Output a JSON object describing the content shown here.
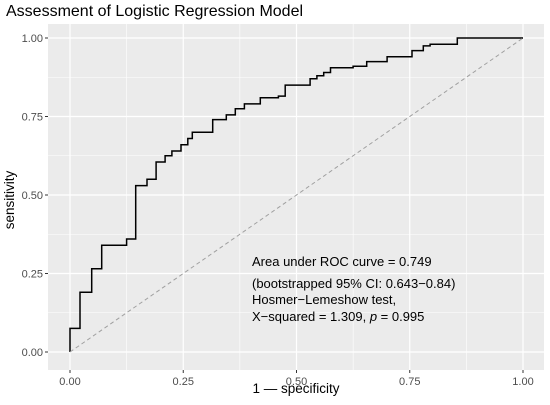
{
  "chart_data": {
    "type": "line",
    "title": "Assessment of Logistic Regression Model",
    "xlabel": "1 — specificity",
    "ylabel": "sensitivity",
    "xlim": [
      0,
      1
    ],
    "ylim": [
      0,
      1
    ],
    "x_ticks": [
      0,
      0.25,
      0.5,
      0.75,
      1
    ],
    "x_tick_labels": [
      "0.00",
      "0.25",
      "0.50",
      "0.75",
      "1.00"
    ],
    "y_ticks": [
      0,
      0.25,
      0.5,
      0.75,
      1
    ],
    "y_tick_labels": [
      "0.00",
      "0.25",
      "0.50",
      "0.75",
      "1.00"
    ],
    "grid": true,
    "background": "#ebebeb",
    "grid_color": "#ffffff",
    "series": [
      {
        "type": "step",
        "color": "#000000",
        "x": [
          0,
          0,
          0.022,
          0.022,
          0.048,
          0.048,
          0.07,
          0.07,
          0.125,
          0.125,
          0.145,
          0.145,
          0.17,
          0.17,
          0.19,
          0.19,
          0.21,
          0.21,
          0.225,
          0.225,
          0.245,
          0.245,
          0.26,
          0.26,
          0.27,
          0.27,
          0.285,
          0.285,
          0.315,
          0.315,
          0.345,
          0.345,
          0.365,
          0.365,
          0.385,
          0.385,
          0.42,
          0.42,
          0.46,
          0.46,
          0.475,
          0.475,
          0.53,
          0.53,
          0.545,
          0.545,
          0.56,
          0.56,
          0.575,
          0.575,
          0.6,
          0.6,
          0.625,
          0.625,
          0.655,
          0.655,
          0.7,
          0.7,
          0.755,
          0.755,
          0.78,
          0.78,
          0.795,
          0.795,
          0.8,
          0.8,
          0.855,
          0.855,
          0.9,
          0.9,
          1.0
        ],
        "y": [
          0,
          0.075,
          0.075,
          0.19,
          0.19,
          0.265,
          0.265,
          0.34,
          0.34,
          0.36,
          0.36,
          0.53,
          0.53,
          0.55,
          0.55,
          0.605,
          0.605,
          0.625,
          0.625,
          0.64,
          0.64,
          0.66,
          0.66,
          0.68,
          0.68,
          0.7,
          0.7,
          0.7,
          0.7,
          0.74,
          0.74,
          0.755,
          0.755,
          0.775,
          0.775,
          0.79,
          0.79,
          0.81,
          0.81,
          0.815,
          0.815,
          0.85,
          0.85,
          0.87,
          0.87,
          0.88,
          0.88,
          0.89,
          0.89,
          0.905,
          0.905,
          0.905,
          0.905,
          0.91,
          0.91,
          0.925,
          0.925,
          0.94,
          0.94,
          0.96,
          0.96,
          0.975,
          0.975,
          0.98,
          0.98,
          0.98,
          0.98,
          1.0,
          1.0,
          1.0,
          1.0
        ]
      },
      {
        "type": "reference-diagonal",
        "color": "#a0a0a0",
        "dashed": true,
        "x": [
          0,
          1
        ],
        "y": [
          0,
          1
        ]
      }
    ],
    "annotations": [
      "Area under ROC curve = 0.749",
      "(bootstrapped 95% CI: 0.643−0.84)",
      "Hosmer−Lemeshow test,"
    ],
    "annotation_hl": {
      "prefix": "X−squared = 1.309, ",
      "p": "p",
      "suffix": " = 0.995"
    }
  }
}
